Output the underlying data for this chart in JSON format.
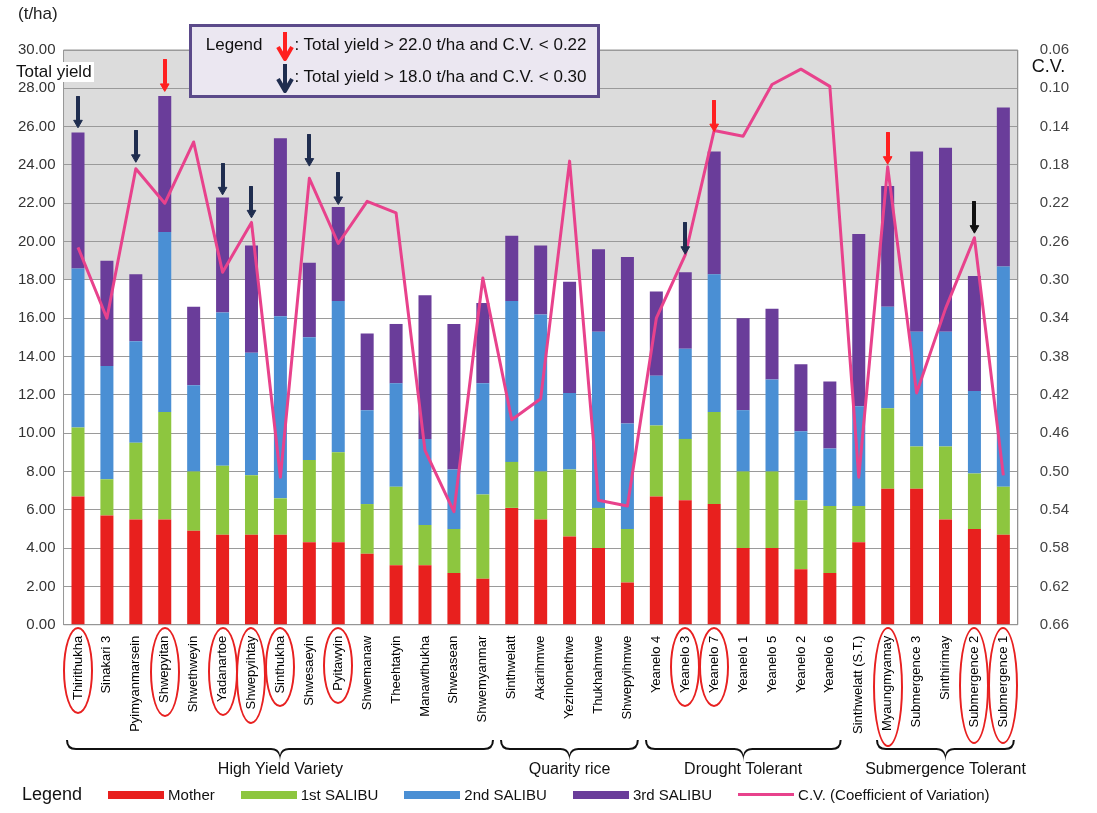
{
  "chart_data": {
    "type": "bar",
    "stacked": true,
    "ylabel": "(t/ha)",
    "y2label": "C.V.",
    "legend_title": "Legend",
    "legend": "bottom",
    "grid": "y",
    "categories": [
      "Thirithukha",
      "Sinakari 3",
      "Pyimyanmarsein",
      "Shwepyitan",
      "Shwethweyin",
      "Yadanartoe",
      "Shwepyihtay",
      "Sinthukha",
      "Shwesaeyin",
      "Pyitawyin",
      "Shwemanaw",
      "Theehtatyin",
      "Manawthukha",
      "Shweasean",
      "Shwemyanmar",
      "Sinthwelatt",
      "Akarihmwe",
      "Yezinlonethwe",
      "Thukhahmwe",
      "Shwepyihmwe",
      "Yeanelo 4",
      "Yeanelo 3",
      "Yeanelo 7",
      "Yeanelo 1",
      "Yeanelo 5",
      "Yeanelo 2",
      "Yeanelo 6",
      "Sinthwelatt (S.T.)",
      "Myaungmyamay",
      "Submergence 3",
      "Sinthirimay",
      "Submergence 2",
      "Submergence 1"
    ],
    "ylim": [
      0,
      30
    ],
    "yticks": [
      {
        "value": 0,
        "label": "0.00"
      },
      {
        "value": 2,
        "label": "2.00"
      },
      {
        "value": 4,
        "label": "4.00"
      },
      {
        "value": 6,
        "label": "6.00"
      },
      {
        "value": 8,
        "label": "8.00"
      },
      {
        "value": 10,
        "label": "10.00"
      },
      {
        "value": 12,
        "label": "12.00"
      },
      {
        "value": 14,
        "label": "14.00"
      },
      {
        "value": 16,
        "label": "16.00"
      },
      {
        "value": 18,
        "label": "18.00"
      },
      {
        "value": 20,
        "label": "20.00"
      },
      {
        "value": 22,
        "label": "22.00"
      },
      {
        "value": 24,
        "label": "24.00"
      },
      {
        "value": 26,
        "label": "26.00"
      },
      {
        "value": 28,
        "label": "28.00"
      },
      {
        "value": 30,
        "label": "30.00"
      }
    ],
    "y2lim": [
      0.66,
      0.06
    ],
    "y2ticks": [
      0.06,
      {
        "value": 0.1,
        "label": "0.10"
      },
      0.14,
      0.18,
      0.22,
      0.26,
      {
        "value": 0.3,
        "label": "0.30"
      },
      0.34,
      0.38,
      0.42,
      0.46,
      {
        "value": 0.5,
        "label": "0.50"
      },
      0.54,
      0.58,
      0.62,
      0.66
    ],
    "bands": [
      {
        "axis": "y",
        "from": 18,
        "to": 30,
        "color": "#dcdcdc"
      }
    ],
    "annotations": [
      "Total yield",
      "Legend",
      ": Total yield > 22.0 t/ha and C.V. < 0.22",
      ": Total yield > 18.0 t/ha and C.V. < 0.30",
      "High Yield Variety",
      "Quarity rice",
      "Drought Tolerant",
      "Submergence Tolerant"
    ],
    "series": [
      {
        "name": "Mother",
        "color": "#e8201e",
        "values": [
          6.7,
          5.7,
          5.5,
          5.5,
          4.9,
          4.7,
          4.7,
          4.7,
          4.3,
          4.3,
          3.7,
          3.1,
          3.1,
          2.7,
          2.4,
          6.1,
          5.5,
          4.6,
          4.0,
          2.2,
          6.7,
          6.5,
          6.3,
          4.0,
          4.0,
          2.9,
          2.7,
          4.3,
          7.1,
          7.1,
          5.5,
          5.0,
          4.7
        ]
      },
      {
        "name": "1st SALIBU",
        "color": "#8dc63f",
        "values": [
          3.6,
          1.9,
          4.0,
          5.6,
          3.1,
          3.6,
          3.1,
          1.9,
          4.3,
          4.7,
          2.6,
          4.1,
          2.1,
          2.3,
          4.4,
          2.4,
          2.5,
          3.5,
          2.1,
          2.8,
          3.7,
          3.2,
          4.8,
          4.0,
          4.0,
          3.6,
          3.5,
          1.9,
          4.2,
          2.2,
          3.8,
          2.9,
          2.5
        ]
      },
      {
        "name": "2nd SALIBU",
        "color": "#4a8fd4",
        "values": [
          8.3,
          5.9,
          5.3,
          9.4,
          4.5,
          8.0,
          6.4,
          9.5,
          6.4,
          7.9,
          4.9,
          5.4,
          4.5,
          3.1,
          5.8,
          8.4,
          8.2,
          4.0,
          9.2,
          5.5,
          2.6,
          4.7,
          7.2,
          3.2,
          4.8,
          3.6,
          3.0,
          5.2,
          5.3,
          6.0,
          6.0,
          4.3,
          11.5
        ]
      },
      {
        "name": "3rd SALIBU",
        "color": "#6a3d9a",
        "values": [
          7.1,
          5.5,
          3.5,
          7.1,
          4.1,
          6.0,
          5.6,
          9.3,
          3.9,
          4.9,
          4.0,
          3.1,
          7.5,
          7.6,
          4.2,
          3.4,
          3.6,
          5.8,
          4.3,
          8.7,
          4.4,
          4.0,
          6.4,
          4.8,
          3.7,
          3.5,
          3.5,
          9.0,
          6.3,
          9.4,
          9.6,
          6.0,
          8.3
        ]
      },
      {
        "name": "C.V. (Coefficient of Variation)",
        "type": "line",
        "axis": "y2",
        "color": "#e8428c",
        "marker": "none",
        "values": [
          0.266,
          0.34,
          0.184,
          0.22,
          0.156,
          0.292,
          0.24,
          0.506,
          0.194,
          0.262,
          0.218,
          0.23,
          0.478,
          0.542,
          0.298,
          0.446,
          0.424,
          0.176,
          0.53,
          0.536,
          0.34,
          0.274,
          0.144,
          0.15,
          0.096,
          0.08,
          0.098,
          0.506,
          0.182,
          0.418,
          0.33,
          0.256,
          0.504
        ]
      },
      {
        "type": "scatter",
        "color": "#ff2020",
        "marker": "triangle",
        "x": [
          "Shwepyitan",
          "Yeanelo 7",
          "Myaungmyamay"
        ],
        "values": [
          28.1,
          26.0,
          24.3
        ]
      },
      {
        "type": "scatter",
        "color": "#1f2d4f",
        "marker": "triangle",
        "x": [
          "Thirithukha",
          "Pyimyanmarsein",
          "Yadanartoe",
          "Shwepyihtay",
          "Shwesaeyin",
          "Pyitawyin",
          "Yeanelo 3"
        ],
        "values": [
          26.2,
          24.4,
          22.7,
          21.5,
          24.2,
          22.2,
          19.6
        ]
      },
      {
        "type": "scatter",
        "color": "#111111",
        "marker": "triangle",
        "x": [
          "Submergence 2"
        ],
        "values": [
          20.7
        ]
      }
    ]
  }
}
